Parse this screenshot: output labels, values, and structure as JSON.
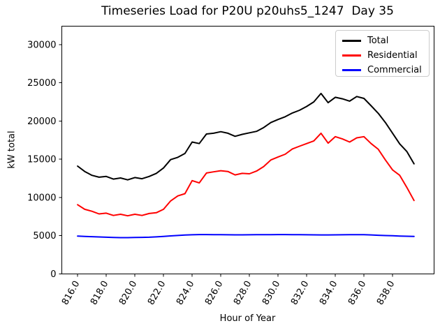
{
  "window": {
    "title": "Timeseries Load for P20U p20uhs5_1247  Day 35"
  },
  "legend": {
    "position": "upper right",
    "items": [
      {
        "label": "Total",
        "color": "#000000"
      },
      {
        "label": "Residential",
        "color": "#ff0000"
      },
      {
        "label": "Commercial",
        "color": "#0000ff"
      }
    ]
  },
  "chart_data": {
    "type": "line",
    "title": "Timeseries Load for P20U p20uhs5_1247  Day 35",
    "xlabel": "Hour of Year",
    "ylabel": "kW total",
    "grid": false,
    "legend_position": "upper right",
    "xlim": [
      814.9,
      840.9
    ],
    "ylim": [
      0,
      32400
    ],
    "xticks": [
      816,
      818,
      820,
      822,
      824,
      826,
      828,
      830,
      832,
      834,
      836,
      838
    ],
    "xtick_labels": [
      "816.0",
      "818.0",
      "820.0",
      "822.0",
      "824.0",
      "826.0",
      "828.0",
      "830.0",
      "832.0",
      "834.0",
      "836.0",
      "838.0"
    ],
    "yticks": [
      0,
      5000,
      10000,
      15000,
      20000,
      25000,
      30000
    ],
    "ytick_labels": [
      "0",
      "5000",
      "10000",
      "15000",
      "20000",
      "25000",
      "30000"
    ],
    "xtick_rotation_deg": 60,
    "x": [
      816.0,
      816.5,
      817.0,
      817.5,
      818.0,
      818.5,
      819.0,
      819.5,
      820.0,
      820.5,
      821.0,
      821.5,
      822.0,
      822.5,
      823.0,
      823.5,
      824.0,
      824.5,
      825.0,
      825.5,
      826.0,
      826.5,
      827.0,
      827.5,
      828.0,
      828.5,
      829.0,
      829.5,
      830.0,
      830.5,
      831.0,
      831.5,
      832.0,
      832.5,
      833.0,
      833.5,
      834.0,
      834.5,
      835.0,
      835.5,
      836.0,
      836.5,
      837.0,
      837.5,
      838.0,
      838.5,
      839.0,
      839.5
    ],
    "series": [
      {
        "name": "Total",
        "color": "#000000",
        "values": [
          14100,
          13400,
          12900,
          12650,
          12750,
          12400,
          12550,
          12300,
          12600,
          12450,
          12750,
          13150,
          13850,
          14950,
          15250,
          15750,
          17250,
          17050,
          18300,
          18400,
          18600,
          18400,
          18000,
          18250,
          18450,
          18650,
          19150,
          19800,
          20200,
          20550,
          21050,
          21400,
          21900,
          22500,
          23600,
          22400,
          23100,
          22900,
          22600,
          23200,
          22950,
          22000,
          21000,
          19800,
          18400,
          17000,
          16000,
          14400
        ]
      },
      {
        "name": "Residential",
        "color": "#ff0000",
        "values": [
          9050,
          8450,
          8200,
          7850,
          7950,
          7650,
          7800,
          7600,
          7800,
          7650,
          7900,
          8000,
          8450,
          9550,
          10200,
          10500,
          12200,
          11900,
          13200,
          13350,
          13500,
          13400,
          12950,
          13150,
          13100,
          13450,
          14050,
          14900,
          15300,
          15650,
          16350,
          16700,
          17050,
          17400,
          18400,
          17100,
          17950,
          17650,
          17250,
          17800,
          17950,
          17050,
          16300,
          14900,
          13600,
          12900,
          11300,
          9600
        ]
      },
      {
        "name": "Commercial",
        "color": "#0000ff",
        "values": [
          4950,
          4900,
          4870,
          4840,
          4800,
          4770,
          4750,
          4750,
          4760,
          4780,
          4800,
          4850,
          4900,
          4970,
          5030,
          5080,
          5120,
          5150,
          5150,
          5140,
          5130,
          5120,
          5110,
          5110,
          5120,
          5130,
          5140,
          5140,
          5150,
          5150,
          5140,
          5130,
          5120,
          5110,
          5100,
          5100,
          5110,
          5120,
          5130,
          5140,
          5130,
          5100,
          5060,
          5020,
          4990,
          4960,
          4930,
          4910
        ]
      }
    ]
  }
}
